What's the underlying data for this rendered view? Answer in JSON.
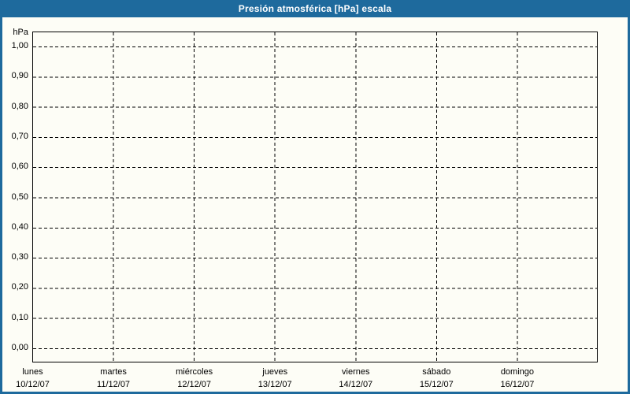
{
  "title_bar": {
    "title": "Presión atmosférica [hPa] escala"
  },
  "colors": {
    "frame": "#1e6a9d",
    "title_text": "#ffffff",
    "background": "#fdfdf6",
    "plot_border": "#000000",
    "gridline": "#000000",
    "label_text": "#000000"
  },
  "chart_data": {
    "type": "line",
    "title": "Presión atmosférica [hPa] escala",
    "ylabel": "hPa",
    "xlabel": "",
    "ylim": [
      0,
      1
    ],
    "grid": "dashed",
    "legend": "none",
    "y_ticks": [
      {
        "value": 1.0,
        "label": "1,00"
      },
      {
        "value": 0.9,
        "label": "0,90"
      },
      {
        "value": 0.8,
        "label": "0,80"
      },
      {
        "value": 0.7,
        "label": "0,70"
      },
      {
        "value": 0.6,
        "label": "0,60"
      },
      {
        "value": 0.5,
        "label": "0,50"
      },
      {
        "value": 0.4,
        "label": "0,40"
      },
      {
        "value": 0.3,
        "label": "0,30"
      },
      {
        "value": 0.2,
        "label": "0,20"
      },
      {
        "value": 0.1,
        "label": "0,10"
      },
      {
        "value": 0.0,
        "label": "0,00"
      }
    ],
    "x_ticks": [
      {
        "day": "lunes",
        "date": "10/12/07"
      },
      {
        "day": "martes",
        "date": "11/12/07"
      },
      {
        "day": "miércoles",
        "date": "12/12/07"
      },
      {
        "day": "jueves",
        "date": "13/12/07"
      },
      {
        "day": "viernes",
        "date": "14/12/07"
      },
      {
        "day": "sábado",
        "date": "15/12/07"
      },
      {
        "day": "domingo",
        "date": "16/12/07"
      }
    ],
    "series": []
  }
}
